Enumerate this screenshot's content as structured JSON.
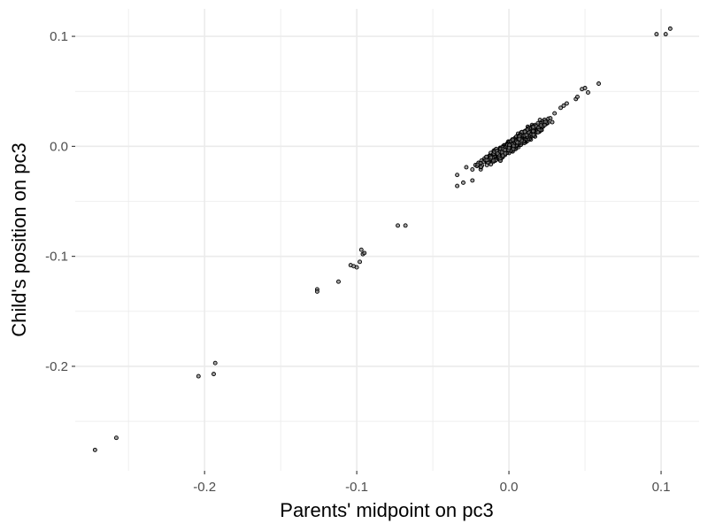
{
  "chart_data": {
    "type": "scatter",
    "xlabel": "Parents' midpoint on pc3",
    "ylabel": "Child's position on pc3",
    "xlim": [
      -0.285,
      0.125
    ],
    "ylim": [
      -0.295,
      0.125
    ],
    "x_ticks": [
      -0.2,
      -0.1,
      0.0,
      0.1
    ],
    "x_tick_labels": [
      "-0.2",
      "-0.1",
      "0.0",
      "0.1"
    ],
    "y_ticks": [
      0.1,
      0.0,
      -0.1,
      -0.2
    ],
    "y_tick_labels": [
      "0.1",
      "0.0",
      "-0.1",
      "-0.2"
    ],
    "grid": true,
    "legend": "none",
    "point_color": "#000000",
    "point_fill": "#7f7f7f",
    "points": [
      [
        -0.272,
        -0.276
      ],
      [
        -0.258,
        -0.265
      ],
      [
        -0.204,
        -0.209
      ],
      [
        -0.194,
        -0.207
      ],
      [
        -0.193,
        -0.197
      ],
      [
        -0.126,
        -0.13
      ],
      [
        -0.126,
        -0.132
      ],
      [
        -0.112,
        -0.123
      ],
      [
        -0.104,
        -0.108
      ],
      [
        -0.102,
        -0.109
      ],
      [
        -0.1,
        -0.11
      ],
      [
        -0.098,
        -0.105
      ],
      [
        -0.097,
        -0.094
      ],
      [
        -0.096,
        -0.098
      ],
      [
        -0.095,
        -0.097
      ],
      [
        -0.073,
        -0.072
      ],
      [
        -0.068,
        -0.072
      ],
      [
        -0.034,
        -0.026
      ],
      [
        -0.034,
        -0.036
      ],
      [
        -0.03,
        -0.033
      ],
      [
        -0.024,
        -0.031
      ],
      [
        -0.028,
        -0.019
      ],
      [
        -0.024,
        -0.021
      ],
      [
        -0.022,
        -0.017
      ],
      [
        -0.02,
        -0.015
      ],
      [
        -0.018,
        -0.013
      ],
      [
        -0.016,
        -0.011
      ],
      [
        -0.015,
        -0.014
      ],
      [
        -0.013,
        -0.009
      ],
      [
        -0.012,
        -0.006
      ],
      [
        -0.01,
        -0.008
      ],
      [
        -0.01,
        -0.004
      ],
      [
        0.03,
        0.03
      ],
      [
        0.034,
        0.035
      ],
      [
        0.036,
        0.037
      ],
      [
        0.038,
        0.039
      ],
      [
        0.044,
        0.043
      ],
      [
        0.045,
        0.045
      ],
      [
        0.048,
        0.052
      ],
      [
        0.05,
        0.053
      ],
      [
        0.052,
        0.049
      ],
      [
        0.059,
        0.057
      ],
      [
        0.097,
        0.102
      ],
      [
        0.103,
        0.102
      ],
      [
        0.106,
        0.107
      ]
    ],
    "dense_cluster": {
      "center": [
        0.004,
        0.003
      ],
      "spread_along_diagonal": 0.013,
      "spread_across": 0.004
    }
  }
}
